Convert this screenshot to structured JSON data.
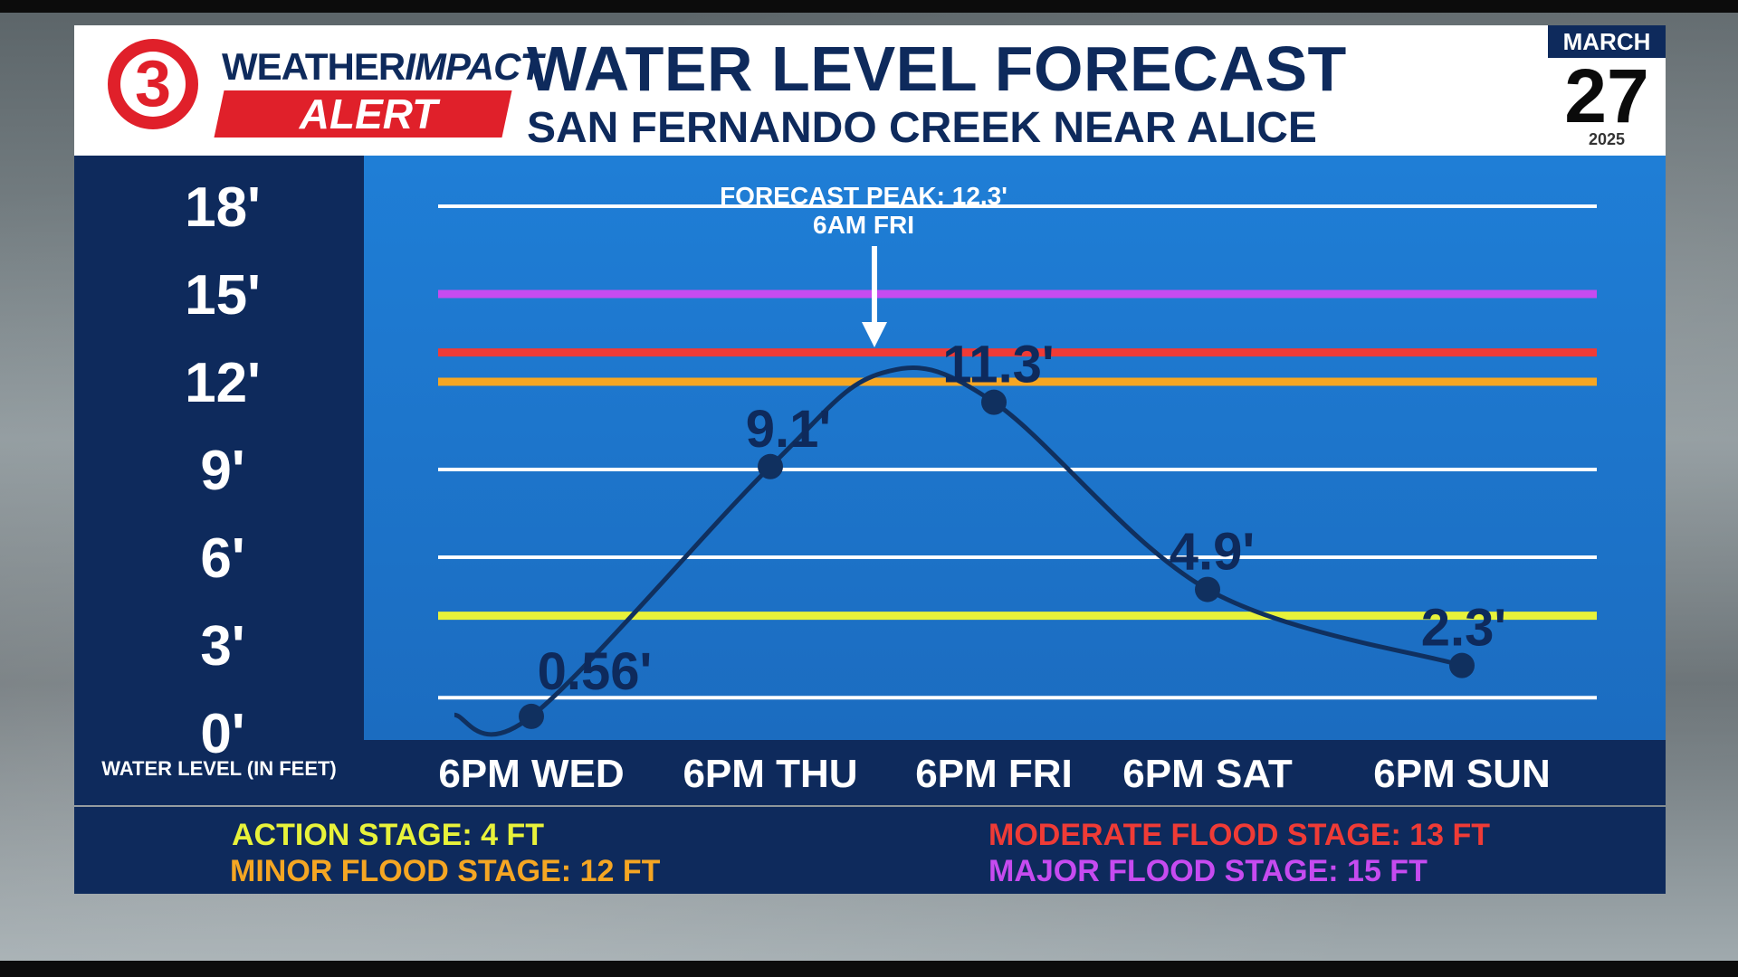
{
  "branding": {
    "channel_number": "3",
    "logo_line1_a": "WEATHER",
    "logo_line1_b": "IMPACT",
    "logo_line2": "ALERT",
    "red": "#e0202a",
    "navy": "#0e2a5c"
  },
  "date": {
    "month": "MARCH",
    "day": "27",
    "year": "2025"
  },
  "chart_data": {
    "type": "line",
    "title": "WATER LEVEL FORECAST",
    "subtitle": "SAN FERNANDO CREEK NEAR ALICE",
    "ylabel": "WATER LEVEL (IN FEET)",
    "ylim": [
      0,
      18
    ],
    "yticks": [
      0,
      3,
      6,
      9,
      12,
      15,
      18
    ],
    "ytick_labels": [
      "0'",
      "3'",
      "6'",
      "9'",
      "12'",
      "15'",
      "18'"
    ],
    "grid": true,
    "x_categories": [
      "6PM WED",
      "6PM THU",
      "6PM FRI",
      "6PM SAT",
      "6PM SUN"
    ],
    "points": [
      {
        "x": 0,
        "value": 0.56,
        "label": "0.56'"
      },
      {
        "x": 1,
        "value": 9.1,
        "label": "9.1'"
      },
      {
        "x": 2,
        "value": 11.3,
        "label": "11.3'"
      },
      {
        "x": 3,
        "value": 4.9,
        "label": "4.9'"
      },
      {
        "x": 4,
        "value": 2.3,
        "label": "2.3'"
      }
    ],
    "peak": {
      "x": 1.5,
      "value": 12.3,
      "label_line1": "FORECAST PEAK: 12.3'",
      "label_line2": "6AM FRI"
    },
    "line_color": "#10305f",
    "stages": [
      {
        "name": "ACTION STAGE: 4 FT",
        "value": 4,
        "color": "#e8f23a"
      },
      {
        "name": "MINOR FLOOD STAGE: 12 FT",
        "value": 12,
        "color": "#f5a623"
      },
      {
        "name": "MODERATE FLOOD STAGE: 13 FT",
        "value": 13,
        "color": "#ef3b36"
      },
      {
        "name": "MAJOR FLOOD STAGE: 15 FT",
        "value": 15,
        "color": "#c64bf0"
      }
    ]
  }
}
